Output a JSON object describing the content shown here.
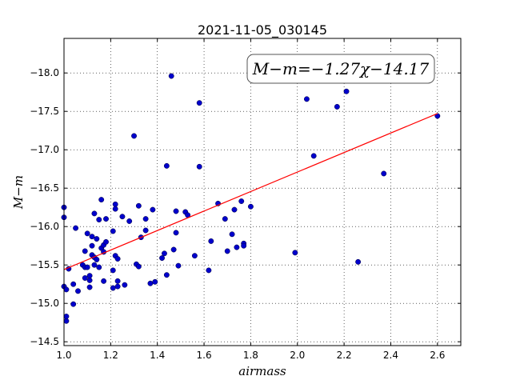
{
  "chart_data": {
    "type": "scatter",
    "title": "2021-11-05_030145",
    "xlabel": "airmass",
    "ylabel": "M−m",
    "xlim": [
      1.0,
      2.7
    ],
    "ylim": [
      -18.45,
      -14.45
    ],
    "y_inverted": true,
    "grid": true,
    "xticks": [
      1.0,
      1.2,
      1.4,
      1.6,
      1.8,
      2.0,
      2.2,
      2.4,
      2.6
    ],
    "xtick_labels": [
      "1.0",
      "1.2",
      "1.4",
      "1.6",
      "1.8",
      "2.0",
      "2.2",
      "2.4",
      "2.6"
    ],
    "yticks": [
      -14.5,
      -15.0,
      -15.5,
      -16.0,
      -16.5,
      -17.0,
      -17.5,
      -18.0
    ],
    "ytick_labels": [
      "−14.5",
      "−15.0",
      "−15.5",
      "−16.0",
      "−16.5",
      "−17.0",
      "−17.5",
      "−18.0"
    ],
    "annotation": "M−m=−1.27χ−14.17",
    "fit": {
      "slope": -1.27,
      "intercept": -14.17,
      "x_range": [
        1.0,
        2.6
      ],
      "color": "#ff0000"
    },
    "marker_color": "#0000cc",
    "points": [
      [
        1.0,
        -15.22
      ],
      [
        1.0,
        -16.12
      ],
      [
        1.0,
        -16.25
      ],
      [
        1.01,
        -14.77
      ],
      [
        1.01,
        -14.83
      ],
      [
        1.01,
        -15.18
      ],
      [
        1.02,
        -15.45
      ],
      [
        1.04,
        -14.99
      ],
      [
        1.04,
        -15.25
      ],
      [
        1.05,
        -15.98
      ],
      [
        1.06,
        -15.16
      ],
      [
        1.08,
        -15.5
      ],
      [
        1.09,
        -15.33
      ],
      [
        1.09,
        -15.47
      ],
      [
        1.09,
        -15.68
      ],
      [
        1.1,
        -15.91
      ],
      [
        1.1,
        -15.47
      ],
      [
        1.11,
        -15.3
      ],
      [
        1.11,
        -15.21
      ],
      [
        1.11,
        -15.36
      ],
      [
        1.12,
        -15.63
      ],
      [
        1.12,
        -15.75
      ],
      [
        1.12,
        -15.87
      ],
      [
        1.13,
        -15.5
      ],
      [
        1.13,
        -15.6
      ],
      [
        1.13,
        -16.17
      ],
      [
        1.14,
        -15.57
      ],
      [
        1.14,
        -15.84
      ],
      [
        1.15,
        -16.09
      ],
      [
        1.15,
        -15.47
      ],
      [
        1.16,
        -15.72
      ],
      [
        1.16,
        -16.35
      ],
      [
        1.17,
        -15.67
      ],
      [
        1.17,
        -15.76
      ],
      [
        1.17,
        -15.29
      ],
      [
        1.18,
        -16.1
      ],
      [
        1.18,
        -15.8
      ],
      [
        1.21,
        -15.43
      ],
      [
        1.21,
        -15.94
      ],
      [
        1.21,
        -15.2
      ],
      [
        1.22,
        -16.29
      ],
      [
        1.22,
        -16.23
      ],
      [
        1.22,
        -15.62
      ],
      [
        1.23,
        -15.58
      ],
      [
        1.23,
        -15.29
      ],
      [
        1.23,
        -15.22
      ],
      [
        1.25,
        -16.13
      ],
      [
        1.26,
        -15.24
      ],
      [
        1.28,
        -16.07
      ],
      [
        1.3,
        -17.18
      ],
      [
        1.31,
        -15.51
      ],
      [
        1.32,
        -15.48
      ],
      [
        1.32,
        -16.27
      ],
      [
        1.33,
        -15.86
      ],
      [
        1.35,
        -15.95
      ],
      [
        1.35,
        -16.1
      ],
      [
        1.37,
        -15.26
      ],
      [
        1.38,
        -16.22
      ],
      [
        1.39,
        -15.28
      ],
      [
        1.42,
        -15.59
      ],
      [
        1.43,
        -15.65
      ],
      [
        1.44,
        -15.37
      ],
      [
        1.44,
        -16.79
      ],
      [
        1.46,
        -17.96
      ],
      [
        1.47,
        -15.7
      ],
      [
        1.48,
        -16.2
      ],
      [
        1.48,
        -15.92
      ],
      [
        1.49,
        -15.49
      ],
      [
        1.52,
        -16.19
      ],
      [
        1.53,
        -16.15
      ],
      [
        1.56,
        -15.62
      ],
      [
        1.58,
        -17.61
      ],
      [
        1.58,
        -16.78
      ],
      [
        1.62,
        -15.43
      ],
      [
        1.63,
        -15.81
      ],
      [
        1.66,
        -16.3
      ],
      [
        1.69,
        -16.1
      ],
      [
        1.7,
        -15.68
      ],
      [
        1.72,
        -15.9
      ],
      [
        1.73,
        -16.22
      ],
      [
        1.74,
        -15.73
      ],
      [
        1.76,
        -16.33
      ],
      [
        1.77,
        -15.78
      ],
      [
        1.77,
        -15.75
      ],
      [
        1.8,
        -16.26
      ],
      [
        1.99,
        -15.66
      ],
      [
        2.04,
        -17.66
      ],
      [
        2.07,
        -16.92
      ],
      [
        2.17,
        -17.56
      ],
      [
        2.21,
        -17.76
      ],
      [
        2.26,
        -15.54
      ],
      [
        2.37,
        -16.69
      ],
      [
        2.6,
        -17.44
      ]
    ]
  }
}
